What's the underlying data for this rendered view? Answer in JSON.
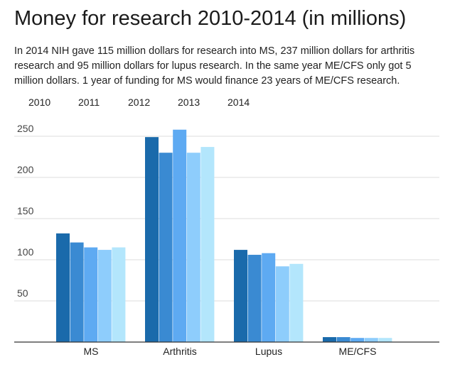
{
  "chart_data": {
    "type": "bar",
    "title": "Money for research 2010-2014 (in millions)",
    "subtitle": "In 2014 NIH gave 115 million dollars for research into MS, 237 million dollars for arthritis research and 95 million dollars for lupus research. In the same year ME/CFS only got 5 million dollars. 1 year of funding for MS would finance 23 years of ME/CFS research.",
    "categories": [
      "MS",
      "Arthritis",
      "Lupus",
      "ME/CFS"
    ],
    "series": [
      {
        "name": "2010",
        "color": "#1a6aab",
        "values": [
          132,
          249,
          112,
          6
        ]
      },
      {
        "name": "2011",
        "color": "#3a8ad2",
        "values": [
          121,
          230,
          106,
          6
        ]
      },
      {
        "name": "2012",
        "color": "#5eaaf2",
        "values": [
          115,
          258,
          108,
          5
        ]
      },
      {
        "name": "2013",
        "color": "#8ecdfc",
        "values": [
          112,
          230,
          92,
          5
        ]
      },
      {
        "name": "2014",
        "color": "#b3e6fc",
        "values": [
          115,
          237,
          95,
          5
        ]
      }
    ],
    "yticks": [
      50,
      100,
      150,
      200,
      250
    ],
    "ylim": [
      0,
      270
    ],
    "grid": true,
    "legend": "top-left"
  }
}
